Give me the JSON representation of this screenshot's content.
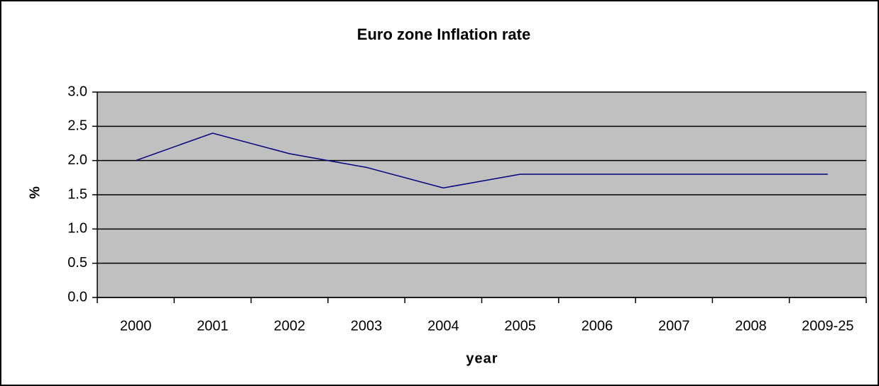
{
  "chart_data": {
    "type": "line",
    "title": "Euro zone Inflation rate",
    "x_label": "year",
    "y_label": "%",
    "categories": [
      "2000",
      "2001",
      "2002",
      "2003",
      "2004",
      "2005",
      "2006",
      "2007",
      "2008",
      "2009-25"
    ],
    "series": [
      {
        "name": "Inflation rate",
        "color": "#000080",
        "values": [
          2.0,
          2.4,
          2.1,
          1.9,
          1.6,
          1.8,
          1.8,
          1.8,
          1.8,
          1.8
        ]
      }
    ],
    "ylim": [
      0,
      3
    ],
    "yticks": [
      {
        "value": 0,
        "label": "0.0"
      },
      0.5,
      {
        "value": 1,
        "label": "1.0"
      },
      1.5,
      {
        "value": 2,
        "label": "2.0"
      },
      2.5,
      {
        "value": 3,
        "label": "3.0"
      }
    ],
    "grid": true,
    "plot_background": "#c0c0c0"
  }
}
